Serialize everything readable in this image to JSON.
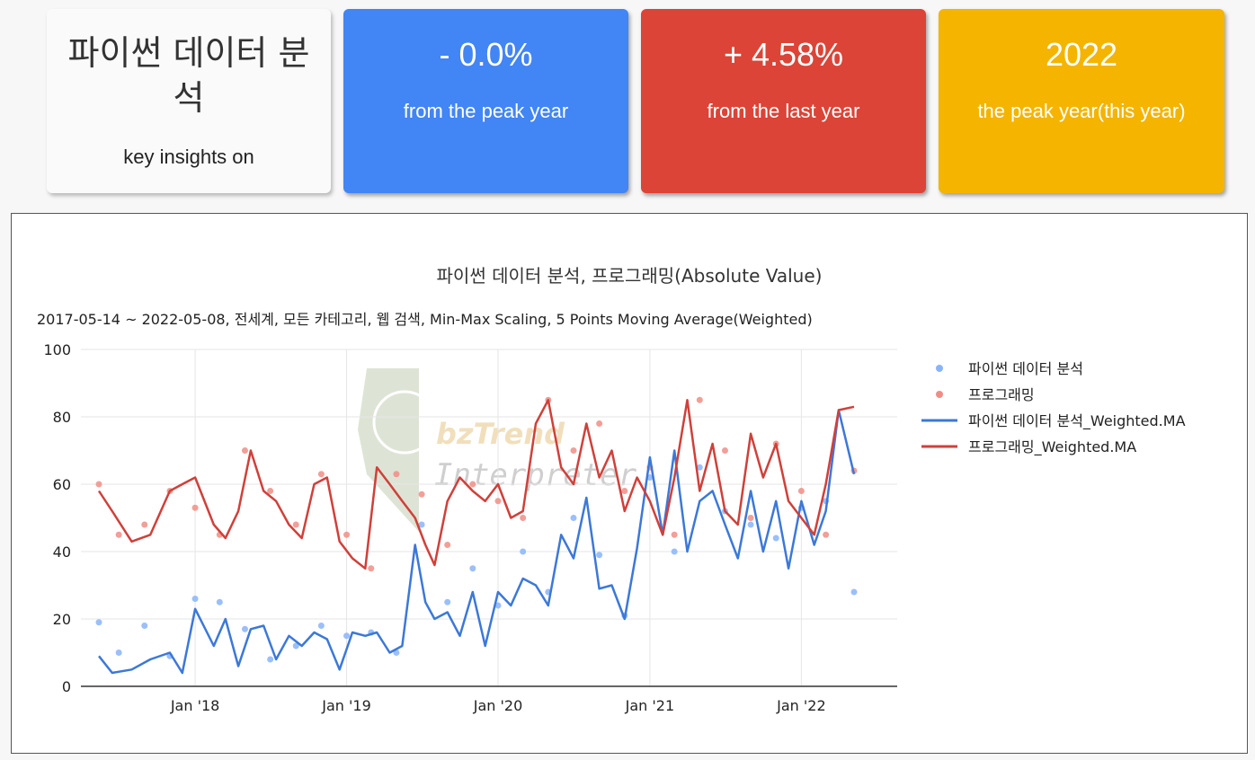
{
  "cards": {
    "title": {
      "text": "파이썬 데이터 분석",
      "subtitle": "key insights on"
    },
    "peak": {
      "value": "- 0.0%",
      "label": "from the peak year",
      "color": "#4285f4"
    },
    "last": {
      "value": "+ 4.58%",
      "label": "from the last year",
      "color": "#db4437"
    },
    "year": {
      "value": "2022",
      "label": "the peak year(this year)",
      "color": "#f4b400"
    }
  },
  "watermark": {
    "line1": "bzTrend",
    "line2": "Interpreter"
  },
  "chart_data": {
    "type": "line",
    "title": "파이썬 데이터 분석, 프로그래밍(Absolute Value)",
    "subtitle": "2017-05-14 ~ 2022-05-08, 전세계, 모든 카테고리, 웹 검색, Min-Max Scaling, 5 Points Moving Average(Weighted)",
    "xlabel": "",
    "ylabel": "",
    "ylim": [
      0,
      100
    ],
    "yticks": [
      0,
      20,
      40,
      60,
      80,
      100
    ],
    "xlim": [
      "2017-05-14",
      "2022-05-08"
    ],
    "xticks": [
      {
        "date": "2018-01-01",
        "label": "Jan '18"
      },
      {
        "date": "2019-01-01",
        "label": "Jan '19"
      },
      {
        "date": "2020-01-01",
        "label": "Jan '20"
      },
      {
        "date": "2021-01-01",
        "label": "Jan '21"
      },
      {
        "date": "2022-01-01",
        "label": "Jan '22"
      }
    ],
    "grid": true,
    "legend_position": "right",
    "series": [
      {
        "name": "파이썬 데이터 분석",
        "kind": "scatter",
        "color": "#8ab4f8",
        "x": [
          "2017-05-14",
          "2017-07-01",
          "2017-09-01",
          "2017-11-01",
          "2018-01-01",
          "2018-03-01",
          "2018-05-01",
          "2018-07-01",
          "2018-09-01",
          "2018-11-01",
          "2019-01-01",
          "2019-03-01",
          "2019-05-01",
          "2019-07-01",
          "2019-09-01",
          "2019-11-01",
          "2020-01-01",
          "2020-03-01",
          "2020-05-01",
          "2020-07-01",
          "2020-09-01",
          "2020-11-01",
          "2021-01-01",
          "2021-03-01",
          "2021-05-01",
          "2021-07-01",
          "2021-09-01",
          "2021-11-01",
          "2022-01-01",
          "2022-03-01",
          "2022-05-08"
        ],
        "values": [
          19,
          10,
          18,
          9,
          26,
          25,
          17,
          8,
          12,
          18,
          15,
          16,
          10,
          48,
          25,
          35,
          24,
          40,
          28,
          50,
          39,
          21,
          62,
          40,
          65,
          52,
          48,
          44,
          53,
          55,
          28
        ]
      },
      {
        "name": "프로그래밍",
        "kind": "scatter",
        "color": "#ee8e86",
        "x": [
          "2017-05-14",
          "2017-07-01",
          "2017-09-01",
          "2017-11-01",
          "2018-01-01",
          "2018-03-01",
          "2018-05-01",
          "2018-07-01",
          "2018-09-01",
          "2018-11-01",
          "2019-01-01",
          "2019-03-01",
          "2019-05-01",
          "2019-07-01",
          "2019-09-01",
          "2019-11-01",
          "2020-01-01",
          "2020-03-01",
          "2020-05-01",
          "2020-07-01",
          "2020-09-01",
          "2020-11-01",
          "2021-01-01",
          "2021-03-01",
          "2021-05-01",
          "2021-07-01",
          "2021-09-01",
          "2021-11-01",
          "2022-01-01",
          "2022-03-01",
          "2022-05-08"
        ],
        "values": [
          60,
          45,
          48,
          58,
          53,
          45,
          70,
          58,
          48,
          63,
          45,
          35,
          63,
          57,
          42,
          60,
          55,
          50,
          85,
          70,
          78,
          58,
          65,
          45,
          85,
          70,
          50,
          72,
          58,
          45,
          64
        ]
      },
      {
        "name": "파이썬 데이터 분석_Weighted.MA",
        "kind": "line",
        "color": "#3c78d8",
        "x": [
          "2017-05-14",
          "2017-06-15",
          "2017-08-01",
          "2017-09-15",
          "2017-11-01",
          "2017-12-01",
          "2018-01-01",
          "2018-02-15",
          "2018-03-15",
          "2018-04-15",
          "2018-05-15",
          "2018-06-15",
          "2018-07-15",
          "2018-08-15",
          "2018-09-15",
          "2018-10-15",
          "2018-11-15",
          "2018-12-15",
          "2019-01-15",
          "2019-02-15",
          "2019-03-15",
          "2019-04-15",
          "2019-05-15",
          "2019-06-15",
          "2019-07-10",
          "2019-08-01",
          "2019-09-01",
          "2019-10-01",
          "2019-11-01",
          "2019-12-01",
          "2020-01-01",
          "2020-02-01",
          "2020-03-01",
          "2020-04-01",
          "2020-05-01",
          "2020-06-01",
          "2020-07-01",
          "2020-08-01",
          "2020-09-01",
          "2020-10-01",
          "2020-11-01",
          "2020-12-01",
          "2021-01-01",
          "2021-02-01",
          "2021-03-01",
          "2021-04-01",
          "2021-05-01",
          "2021-06-01",
          "2021-07-01",
          "2021-08-01",
          "2021-09-01",
          "2021-10-01",
          "2021-11-01",
          "2021-12-01",
          "2022-01-01",
          "2022-02-01",
          "2022-03-01",
          "2022-04-01",
          "2022-05-08"
        ],
        "values": [
          9,
          4,
          5,
          8,
          10,
          4,
          23,
          12,
          20,
          6,
          17,
          18,
          8,
          15,
          12,
          16,
          14,
          5,
          16,
          15,
          16,
          10,
          12,
          42,
          25,
          20,
          22,
          15,
          28,
          12,
          28,
          24,
          32,
          30,
          24,
          45,
          38,
          56,
          29,
          30,
          20,
          41,
          68,
          45,
          70,
          40,
          55,
          58,
          48,
          38,
          58,
          40,
          55,
          35,
          55,
          42,
          52,
          82,
          63
        ]
      },
      {
        "name": "프로그래밍_Weighted.MA",
        "kind": "line",
        "color": "#d0403a",
        "x": [
          "2017-05-14",
          "2017-06-15",
          "2017-08-01",
          "2017-09-15",
          "2017-11-01",
          "2017-12-01",
          "2018-01-01",
          "2018-02-15",
          "2018-03-15",
          "2018-04-15",
          "2018-05-15",
          "2018-06-15",
          "2018-07-15",
          "2018-08-15",
          "2018-09-15",
          "2018-10-15",
          "2018-11-15",
          "2018-12-15",
          "2019-01-15",
          "2019-02-15",
          "2019-03-15",
          "2019-04-15",
          "2019-05-15",
          "2019-06-15",
          "2019-07-10",
          "2019-08-01",
          "2019-09-01",
          "2019-10-01",
          "2019-11-01",
          "2019-12-01",
          "2020-01-01",
          "2020-02-01",
          "2020-03-01",
          "2020-04-01",
          "2020-05-01",
          "2020-06-01",
          "2020-07-01",
          "2020-08-01",
          "2020-09-01",
          "2020-10-01",
          "2020-11-01",
          "2020-12-01",
          "2021-01-01",
          "2021-02-01",
          "2021-03-01",
          "2021-04-01",
          "2021-05-01",
          "2021-06-01",
          "2021-07-01",
          "2021-08-01",
          "2021-09-01",
          "2021-10-01",
          "2021-11-01",
          "2021-12-01",
          "2022-01-01",
          "2022-02-01",
          "2022-03-01",
          "2022-04-01",
          "2022-05-08"
        ],
        "values": [
          58,
          52,
          43,
          45,
          58,
          60,
          62,
          48,
          44,
          52,
          70,
          58,
          55,
          48,
          44,
          60,
          62,
          43,
          38,
          35,
          65,
          60,
          55,
          50,
          42,
          36,
          55,
          62,
          58,
          55,
          60,
          50,
          52,
          78,
          85,
          65,
          60,
          78,
          62,
          70,
          52,
          62,
          55,
          45,
          62,
          85,
          58,
          72,
          52,
          48,
          75,
          62,
          72,
          55,
          50,
          45,
          60,
          82,
          83
        ]
      }
    ]
  }
}
